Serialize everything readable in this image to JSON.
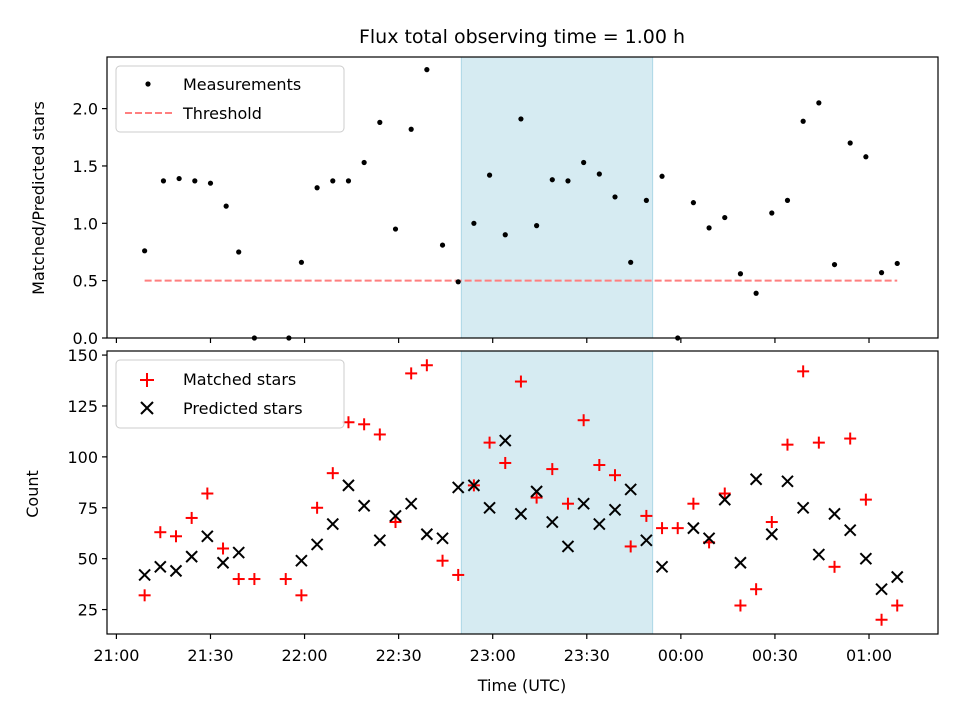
{
  "chart_data": [
    {
      "type": "scatter",
      "title": "Flux total observing time = 1.00 h",
      "xlabel": "",
      "ylabel": "Matched/Predicted stars",
      "xlim": [
        "20:57",
        "01:22"
      ],
      "ylim": [
        0,
        2.45
      ],
      "yticks": [
        "0.0",
        "0.5",
        "1.0",
        "1.5",
        "2.0"
      ],
      "grid": false,
      "legend_position": "top-left",
      "highlight_span": [
        "22:50",
        "23:51"
      ],
      "series": [
        {
          "name": "Measurements",
          "color": "#000000",
          "marker": "dot",
          "points": [
            [
              "21:09",
              0.76
            ],
            [
              "21:15",
              1.37
            ],
            [
              "21:20",
              1.39
            ],
            [
              "21:25",
              1.37
            ],
            [
              "21:30",
              1.35
            ],
            [
              "21:35",
              1.15
            ],
            [
              "21:39",
              0.75
            ],
            [
              "21:44",
              0.0
            ],
            [
              "21:55",
              0.0
            ],
            [
              "21:59",
              0.66
            ],
            [
              "22:04",
              1.31
            ],
            [
              "22:09",
              1.37
            ],
            [
              "22:14",
              1.37
            ],
            [
              "22:19",
              1.53
            ],
            [
              "22:24",
              1.88
            ],
            [
              "22:29",
              0.95
            ],
            [
              "22:34",
              1.82
            ],
            [
              "22:39",
              2.34
            ],
            [
              "22:44",
              0.81
            ],
            [
              "22:49",
              0.49
            ],
            [
              "22:54",
              1.0
            ],
            [
              "22:59",
              1.42
            ],
            [
              "23:04",
              0.9
            ],
            [
              "23:09",
              1.91
            ],
            [
              "23:14",
              0.98
            ],
            [
              "23:19",
              1.38
            ],
            [
              "23:24",
              1.37
            ],
            [
              "23:29",
              1.53
            ],
            [
              "23:34",
              1.43
            ],
            [
              "23:39",
              1.23
            ],
            [
              "23:44",
              0.66
            ],
            [
              "23:49",
              1.2
            ],
            [
              "23:54",
              1.41
            ],
            [
              "23:59",
              0.0
            ],
            [
              "00:04",
              1.18
            ],
            [
              "00:09",
              0.96
            ],
            [
              "00:14",
              1.05
            ],
            [
              "00:19",
              0.56
            ],
            [
              "00:24",
              0.39
            ],
            [
              "00:29",
              1.09
            ],
            [
              "00:34",
              1.2
            ],
            [
              "00:39",
              1.89
            ],
            [
              "00:44",
              2.05
            ],
            [
              "00:49",
              0.64
            ],
            [
              "00:54",
              1.7
            ],
            [
              "00:59",
              1.58
            ],
            [
              "01:04",
              0.57
            ],
            [
              "01:09",
              0.65
            ]
          ]
        },
        {
          "name": "Threshold",
          "color": "#ff7f7f",
          "marker": "dashed-line",
          "points": [
            [
              "21:09",
              0.5
            ],
            [
              "01:09",
              0.5
            ]
          ]
        }
      ]
    },
    {
      "type": "scatter",
      "title": "",
      "xlabel": "Time (UTC)",
      "ylabel": "Count",
      "xlim": [
        "20:57",
        "01:22"
      ],
      "ylim": [
        13,
        152
      ],
      "yticks": [
        "25",
        "50",
        "75",
        "100",
        "125",
        "150"
      ],
      "xticks": [
        "21:00",
        "21:30",
        "22:00",
        "22:30",
        "23:00",
        "23:30",
        "00:00",
        "00:30",
        "01:00"
      ],
      "grid": false,
      "legend_position": "top-left",
      "highlight_span": [
        "22:50",
        "23:51"
      ],
      "series": [
        {
          "name": "Matched stars",
          "color": "#ff0000",
          "marker": "plus",
          "points": [
            [
              "21:09",
              32
            ],
            [
              "21:14",
              63
            ],
            [
              "21:19",
              61
            ],
            [
              "21:24",
              70
            ],
            [
              "21:29",
              82
            ],
            [
              "21:34",
              55
            ],
            [
              "21:39",
              40
            ],
            [
              "21:44",
              40
            ],
            [
              "21:54",
              40
            ],
            [
              "21:59",
              32
            ],
            [
              "22:04",
              75
            ],
            [
              "22:09",
              92
            ],
            [
              "22:14",
              117
            ],
            [
              "22:19",
              116
            ],
            [
              "22:24",
              111
            ],
            [
              "22:29",
              68
            ],
            [
              "22:34",
              141
            ],
            [
              "22:39",
              145
            ],
            [
              "22:44",
              49
            ],
            [
              "22:49",
              42
            ],
            [
              "22:54",
              86
            ],
            [
              "22:59",
              107
            ],
            [
              "23:04",
              97
            ],
            [
              "23:09",
              137
            ],
            [
              "23:14",
              80
            ],
            [
              "23:19",
              94
            ],
            [
              "23:24",
              77
            ],
            [
              "23:29",
              118
            ],
            [
              "23:34",
              96
            ],
            [
              "23:39",
              91
            ],
            [
              "23:44",
              56
            ],
            [
              "23:49",
              71
            ],
            [
              "23:54",
              65
            ],
            [
              "23:59",
              65
            ],
            [
              "00:04",
              77
            ],
            [
              "00:09",
              58
            ],
            [
              "00:14",
              82
            ],
            [
              "00:19",
              27
            ],
            [
              "00:24",
              35
            ],
            [
              "00:29",
              68
            ],
            [
              "00:34",
              106
            ],
            [
              "00:39",
              142
            ],
            [
              "00:44",
              107
            ],
            [
              "00:49",
              46
            ],
            [
              "00:54",
              109
            ],
            [
              "00:59",
              79
            ],
            [
              "01:04",
              20
            ],
            [
              "01:09",
              27
            ]
          ]
        },
        {
          "name": "Predicted stars",
          "color": "#000000",
          "marker": "x",
          "points": [
            [
              "21:09",
              42
            ],
            [
              "21:14",
              46
            ],
            [
              "21:19",
              44
            ],
            [
              "21:24",
              51
            ],
            [
              "21:29",
              61
            ],
            [
              "21:34",
              48
            ],
            [
              "21:39",
              53
            ],
            [
              "21:59",
              49
            ],
            [
              "22:04",
              57
            ],
            [
              "22:09",
              67
            ],
            [
              "22:14",
              86
            ],
            [
              "22:19",
              76
            ],
            [
              "22:24",
              59
            ],
            [
              "22:29",
              71
            ],
            [
              "22:34",
              77
            ],
            [
              "22:39",
              62
            ],
            [
              "22:44",
              60
            ],
            [
              "22:49",
              85
            ],
            [
              "22:54",
              86
            ],
            [
              "22:59",
              75
            ],
            [
              "23:04",
              108
            ],
            [
              "23:09",
              72
            ],
            [
              "23:14",
              83
            ],
            [
              "23:19",
              68
            ],
            [
              "23:24",
              56
            ],
            [
              "23:29",
              77
            ],
            [
              "23:34",
              67
            ],
            [
              "23:39",
              74
            ],
            [
              "23:44",
              84
            ],
            [
              "23:49",
              59
            ],
            [
              "23:54",
              46
            ],
            [
              "00:04",
              65
            ],
            [
              "00:09",
              60
            ],
            [
              "00:14",
              79
            ],
            [
              "00:19",
              48
            ],
            [
              "00:24",
              89
            ],
            [
              "00:29",
              62
            ],
            [
              "00:34",
              88
            ],
            [
              "00:39",
              75
            ],
            [
              "00:44",
              52
            ],
            [
              "00:49",
              72
            ],
            [
              "00:54",
              64
            ],
            [
              "00:59",
              50
            ],
            [
              "01:04",
              35
            ],
            [
              "01:09",
              41
            ]
          ]
        }
      ]
    }
  ],
  "colors": {
    "highlight_fill": "#add8e6"
  }
}
